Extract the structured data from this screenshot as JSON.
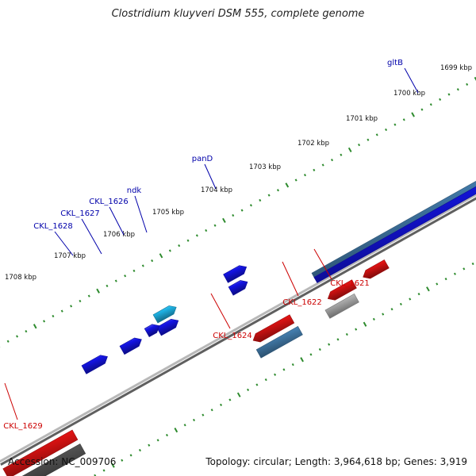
{
  "title": "Clostridium kluyveri DSM 555, complete genome",
  "accession": "Accession: NC_009706",
  "topology": "Topology: circular; Length: 3,964,618 bp; Genes: 3,919",
  "colors": {
    "forward_cds": "#1414e6",
    "reverse_cds": "#e61414",
    "forward_rna": "#4682b4",
    "reverse_rna": "#555555",
    "pseudo": "#b4b4b4",
    "highlight": "#1eb4e6",
    "tick": "#2e8b2e",
    "backbone": "#888888",
    "forward_label": "#0000aa",
    "reverse_label": "#cc0000"
  },
  "scale_labels": [
    "1699 kbp",
    "1700 kbp",
    "1701 kbp",
    "1702 kbp",
    "1703 kbp",
    "1704 kbp",
    "1705 kbp",
    "1706 kbp",
    "1707 kbp",
    "1708 kbp"
  ],
  "gene_labels": [
    {
      "text": "gltB",
      "strand": "forward"
    },
    {
      "text": "panD",
      "strand": "forward"
    },
    {
      "text": "ndk",
      "strand": "forward"
    },
    {
      "text": "CKL_1626",
      "strand": "forward"
    },
    {
      "text": "CKL_1627",
      "strand": "forward"
    },
    {
      "text": "CKL_1628",
      "strand": "forward"
    },
    {
      "text": "CKL_1621",
      "strand": "reverse"
    },
    {
      "text": "CKL_1622",
      "strand": "reverse"
    },
    {
      "text": "CKL_1624",
      "strand": "reverse"
    },
    {
      "text": "CKL_1629",
      "strand": "reverse"
    }
  ]
}
